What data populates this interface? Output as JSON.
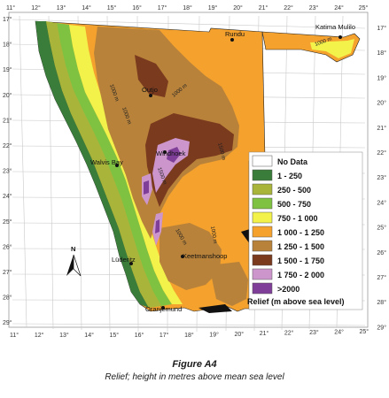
{
  "map": {
    "top_ticks": [
      "11°",
      "12°",
      "13°",
      "14°",
      "15°",
      "16°",
      "17°",
      "18°",
      "19°",
      "20°",
      "21°",
      "22°",
      "23°",
      "24°",
      "25°"
    ],
    "bottom_ticks": [
      "11°",
      "12°",
      "13°",
      "14°",
      "15°",
      "16°",
      "17°",
      "18°",
      "19°",
      "20°",
      "21°",
      "22°",
      "23°",
      "24°",
      "25°"
    ],
    "left_ticks": [
      "17°",
      "18°",
      "19°",
      "20°",
      "21°",
      "22°",
      "23°",
      "24°",
      "25°",
      "26°",
      "27°",
      "28°",
      "29°"
    ],
    "right_ticks": [
      "17°",
      "18°",
      "19°",
      "20°",
      "21°",
      "22°",
      "23°",
      "24°",
      "25°",
      "26°",
      "27°",
      "28°",
      "29°"
    ],
    "places": {
      "rundu": "Rundu",
      "katima_mulilo": "Katima Mulilo",
      "outjo": "Outjo",
      "walvis_bay": "Walvis Bay",
      "windhoek": "Windhoek",
      "luderitz": "Lüderitz",
      "keetmanshoop": "Keetmanshoop",
      "oranjemund": "Oranjemund"
    },
    "contour_labels": [
      "1000 m",
      "1000 m",
      "1500 m",
      "1000 m",
      "1500 m",
      "1000 m",
      "1000 m",
      "1000 m"
    ],
    "north_label": "N"
  },
  "legend": {
    "items": [
      {
        "label": "No Data",
        "color": "#ffffff"
      },
      {
        "label": "1 - 250",
        "color": "#3a7d3a"
      },
      {
        "label": "250 - 500",
        "color": "#a9b43a"
      },
      {
        "label": "500 - 750",
        "color": "#7fc241"
      },
      {
        "label": "750 - 1 000",
        "color": "#f2f24a"
      },
      {
        "label": "1 000 - 1 250",
        "color": "#f4a12d"
      },
      {
        "label": "1 250 - 1 500",
        "color": "#b8823a"
      },
      {
        "label": "1 500 - 1 750",
        "color": "#7a3a1e"
      },
      {
        "label": "1 750 - 2 000",
        "color": "#cc96cc"
      },
      {
        "label": ">2000",
        "color": "#7f3f98"
      }
    ],
    "title": "Relief (m above sea level)"
  },
  "caption": {
    "title": "Figure A4",
    "subtitle": "Relief; height in metres above mean sea level"
  }
}
